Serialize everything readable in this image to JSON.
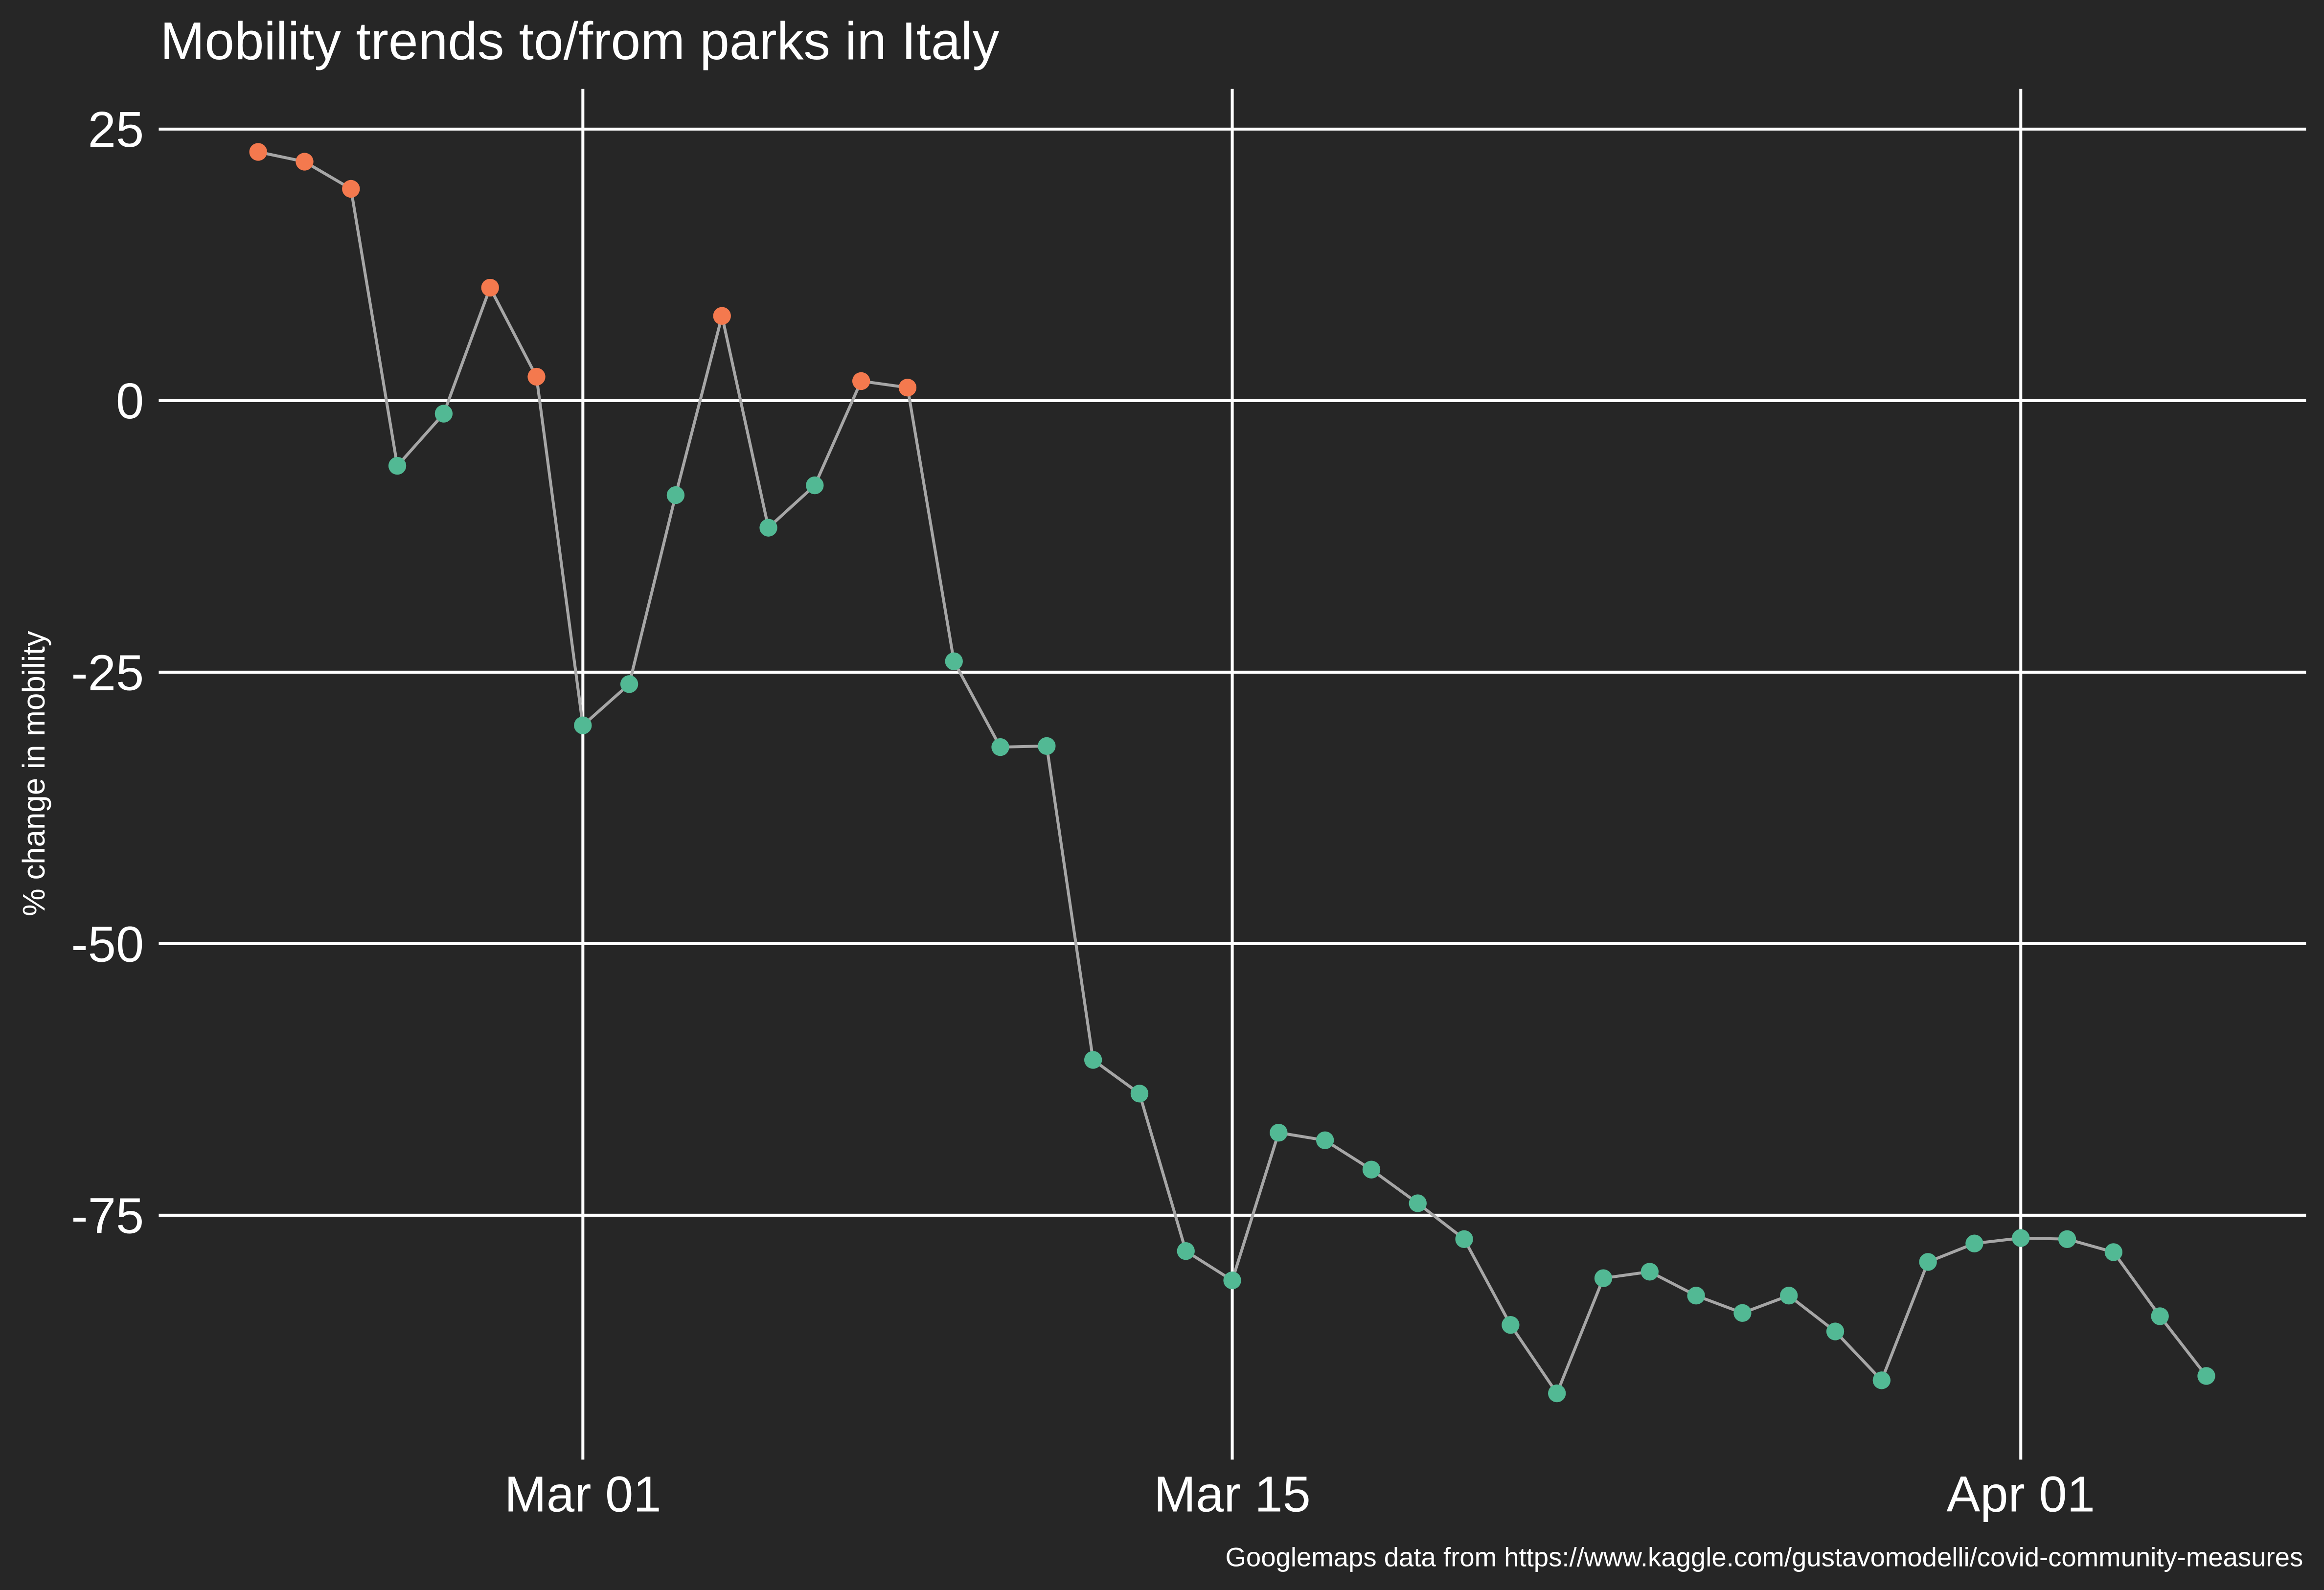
{
  "chart_data": {
    "type": "line",
    "title": "Mobility trends to/from parks in Italy",
    "y_label": "% change in mobility",
    "caption": "Googlemaps data from https://www.kaggle.com/gustavomodelli/covid-community-measures",
    "x": [
      "Feb 23",
      "Feb 24",
      "Feb 25",
      "Feb 26",
      "Feb 27",
      "Feb 28",
      "Feb 29",
      "Mar 01",
      "Mar 02",
      "Mar 03",
      "Mar 04",
      "Mar 05",
      "Mar 06",
      "Mar 07",
      "Mar 08",
      "Mar 09",
      "Mar 10",
      "Mar 11",
      "Mar 12",
      "Mar 13",
      "Mar 14",
      "Mar 15",
      "Mar 16",
      "Mar 17",
      "Mar 18",
      "Mar 19",
      "Mar 20",
      "Mar 21",
      "Mar 22",
      "Mar 23",
      "Mar 24",
      "Mar 25",
      "Mar 26",
      "Mar 27",
      "Mar 28",
      "Mar 29",
      "Mar 30",
      "Mar 31",
      "Apr 01",
      "Apr 02",
      "Apr 03",
      "Apr 04",
      "Apr 05"
    ],
    "series": [
      {
        "color": "#a6a6a6",
        "values": [
          22.9,
          22.0,
          19.5,
          -6.0,
          -1.2,
          10.4,
          2.2,
          -29.9,
          -26.1,
          -8.7,
          7.8,
          -11.7,
          -7.8,
          1.8,
          1.2,
          -24.0,
          -31.9,
          -31.8,
          -60.7,
          -63.8,
          -78.3,
          -81.0,
          -67.4,
          -68.1,
          -70.8,
          -73.9,
          -77.2,
          -85.1,
          -91.4,
          -80.8,
          -80.2,
          -82.4,
          -84.0,
          -82.4,
          -85.7,
          -90.2,
          -79.3,
          -77.6,
          -77.1,
          -77.2,
          -78.4,
          -84.3,
          -89.8
        ],
        "point_colors": [
          "#f4794e",
          "#f4794e",
          "#f4794e",
          "#52b994",
          "#52b994",
          "#f4794e",
          "#f4794e",
          "#52b994",
          "#52b994",
          "#52b994",
          "#f4794e",
          "#52b994",
          "#52b994",
          "#f4794e",
          "#f4794e",
          "#52b994",
          "#52b994",
          "#52b994",
          "#52b994",
          "#52b994",
          "#52b994",
          "#52b994",
          "#52b994",
          "#52b994",
          "#52b994",
          "#52b994",
          "#52b994",
          "#52b994",
          "#52b994",
          "#52b994",
          "#52b994",
          "#52b994",
          "#52b994",
          "#52b994",
          "#52b994",
          "#52b994",
          "#52b994",
          "#52b994",
          "#52b994",
          "#52b994",
          "#52b994",
          "#52b994",
          "#52b994"
        ]
      }
    ],
    "xlim": [
      "Feb 22",
      "Apr 06"
    ],
    "xticks": [
      "Mar 01",
      "Mar 15",
      "Apr 01"
    ],
    "ylim": [
      -97.5,
      28.7
    ],
    "yticks": [
      25,
      0,
      -25,
      -50,
      -75
    ],
    "grid": true
  }
}
